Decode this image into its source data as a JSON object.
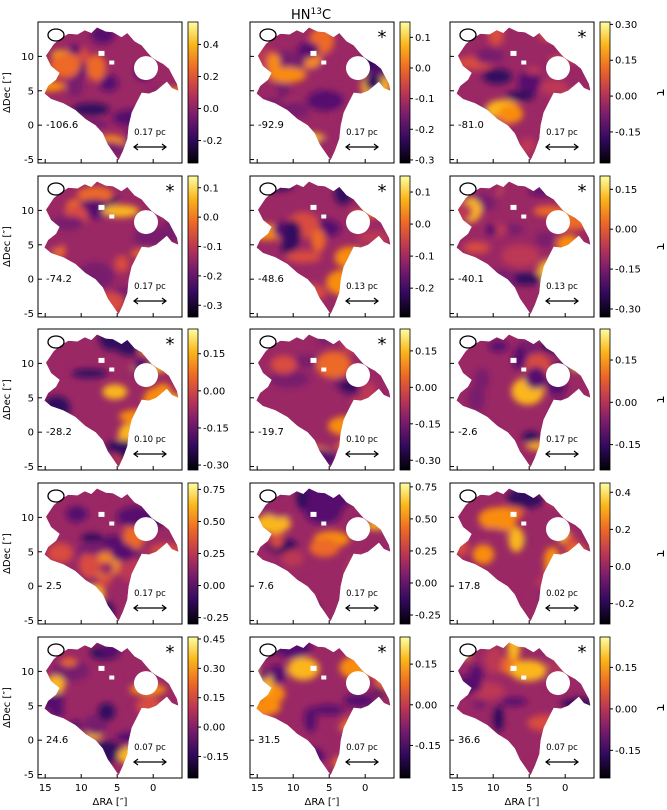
{
  "chart_data": {
    "type": "heatmap",
    "title": "HN",
    "title_isotope": "13",
    "title_tail": "C",
    "xlabel": "ΔRA [″]",
    "ylabel": "ΔDec [″]",
    "colorbar_label": "τ",
    "colormap": "inferno",
    "colors": {
      "c0": "#000004",
      "c1": "#320a5e",
      "c2": "#781c6d",
      "c3": "#bc3754",
      "c4": "#ed6925",
      "c5": "#fbb61a",
      "c6": "#fcffa4"
    },
    "xlim": [
      16,
      -4
    ],
    "ylim": [
      -5.5,
      15
    ],
    "xticks": [
      15,
      10,
      5,
      0
    ],
    "yticks": [
      -5,
      0,
      5,
      10
    ],
    "panels": [
      {
        "velocity": "-106.6",
        "scale": "0.17 pc",
        "star": false,
        "cbar_ticks": [
          "0.4",
          "0.2",
          "0.0",
          "-0.2"
        ],
        "cbar_values": [
          0.4,
          0.2,
          0.0,
          -0.2
        ],
        "cbar_range": [
          -0.34,
          0.54
        ],
        "show_tau": false
      },
      {
        "velocity": "-92.9",
        "scale": "0.17 pc",
        "star": true,
        "cbar_ticks": [
          "0.1",
          "0.0",
          "-0.1",
          "-0.2",
          "-0.3"
        ],
        "cbar_values": [
          0.1,
          0.0,
          -0.1,
          -0.2,
          -0.3
        ],
        "cbar_range": [
          -0.31,
          0.15
        ],
        "show_tau": false
      },
      {
        "velocity": "-81.0",
        "scale": "0.17 pc",
        "star": true,
        "cbar_ticks": [
          "0.30",
          "0.15",
          "0.00",
          "-0.15"
        ],
        "cbar_values": [
          0.3,
          0.15,
          0.0,
          -0.15
        ],
        "cbar_range": [
          -0.28,
          0.31
        ],
        "show_tau": true
      },
      {
        "velocity": "-74.2",
        "scale": "0.17 pc",
        "star": true,
        "cbar_ticks": [
          "0.1",
          "0.0",
          "-0.1",
          "-0.2",
          "-0.3"
        ],
        "cbar_values": [
          0.1,
          0.0,
          -0.1,
          -0.2,
          -0.3
        ],
        "cbar_range": [
          -0.34,
          0.14
        ],
        "show_tau": false
      },
      {
        "velocity": "-48.6",
        "scale": "0.13 pc",
        "star": true,
        "cbar_ticks": [
          "0.1",
          "0.0",
          "-0.1",
          "-0.2"
        ],
        "cbar_values": [
          0.1,
          0.0,
          -0.1,
          -0.2
        ],
        "cbar_range": [
          -0.29,
          0.15
        ],
        "show_tau": false
      },
      {
        "velocity": "-40.1",
        "scale": "0.13 pc",
        "star": true,
        "cbar_ticks": [
          "0.15",
          "0.00",
          "-0.15",
          "-0.30"
        ],
        "cbar_values": [
          0.15,
          0.0,
          -0.15,
          -0.3
        ],
        "cbar_range": [
          -0.33,
          0.2
        ],
        "show_tau": true
      },
      {
        "velocity": "-28.2",
        "scale": "0.10 pc",
        "star": true,
        "cbar_ticks": [
          "0.15",
          "0.00",
          "-0.15",
          "-0.30"
        ],
        "cbar_values": [
          0.15,
          0.0,
          -0.15,
          -0.3
        ],
        "cbar_range": [
          -0.32,
          0.25
        ],
        "show_tau": false
      },
      {
        "velocity": "-19.7",
        "scale": "0.10 pc",
        "star": true,
        "cbar_ticks": [
          "0.15",
          "0.00",
          "-0.15",
          "-0.30"
        ],
        "cbar_values": [
          0.15,
          0.0,
          -0.15,
          -0.3
        ],
        "cbar_range": [
          -0.34,
          0.24
        ],
        "show_tau": false
      },
      {
        "velocity": "-2.6",
        "scale": "0.17 pc",
        "star": false,
        "cbar_ticks": [
          "0.15",
          "0.00",
          "-0.15"
        ],
        "cbar_values": [
          0.15,
          0.0,
          -0.15
        ],
        "cbar_range": [
          -0.24,
          0.26
        ],
        "show_tau": true
      },
      {
        "velocity": "2.5",
        "scale": "0.17 pc",
        "star": false,
        "cbar_ticks": [
          "0.75",
          "0.50",
          "0.25",
          "0.00",
          "-0.25"
        ],
        "cbar_values": [
          0.75,
          0.5,
          0.25,
          0.0,
          -0.25
        ],
        "cbar_range": [
          -0.3,
          0.8
        ],
        "show_tau": false
      },
      {
        "velocity": "7.6",
        "scale": "0.17 pc",
        "star": false,
        "cbar_ticks": [
          "0.75",
          "0.50",
          "0.25",
          "0.00",
          "-0.25"
        ],
        "cbar_values": [
          0.75,
          0.5,
          0.25,
          0.0,
          -0.25
        ],
        "cbar_range": [
          -0.32,
          0.78
        ],
        "show_tau": false
      },
      {
        "velocity": "17.8",
        "scale": "0.02 pc",
        "star": false,
        "cbar_ticks": [
          "0.4",
          "0.2",
          "0.0",
          "-0.2"
        ],
        "cbar_values": [
          0.4,
          0.2,
          0.0,
          -0.2
        ],
        "cbar_range": [
          -0.31,
          0.45
        ],
        "show_tau": true
      },
      {
        "velocity": "24.6",
        "scale": "0.07 pc",
        "star": true,
        "cbar_ticks": [
          "0.45",
          "0.30",
          "0.15",
          "0.00",
          "-0.15"
        ],
        "cbar_values": [
          0.45,
          0.3,
          0.15,
          0.0,
          -0.15
        ],
        "cbar_range": [
          -0.26,
          0.46
        ],
        "show_tau": false
      },
      {
        "velocity": "31.5",
        "scale": "0.07 pc",
        "star": true,
        "cbar_ticks": [
          "0.15",
          "0.00",
          "-0.15"
        ],
        "cbar_values": [
          0.15,
          0.0,
          -0.15
        ],
        "cbar_range": [
          -0.27,
          0.25
        ],
        "show_tau": false
      },
      {
        "velocity": "36.6",
        "scale": "0.07 pc",
        "star": true,
        "cbar_ticks": [
          "0.15",
          "0.00",
          "-0.15"
        ],
        "cbar_values": [
          0.15,
          0.0,
          -0.15
        ],
        "cbar_range": [
          -0.25,
          0.26
        ],
        "show_tau": true
      }
    ]
  }
}
